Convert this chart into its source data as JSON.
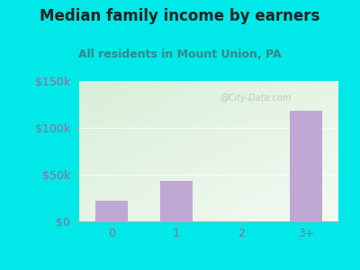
{
  "title": "Median family income by earners",
  "subtitle": "All residents in Mount Union, PA",
  "categories": [
    "0",
    "1",
    "2",
    "3+"
  ],
  "values": [
    22000,
    43000,
    0,
    118000
  ],
  "bar_color": "#c0a8d4",
  "ylim": [
    0,
    150000
  ],
  "yticks": [
    0,
    50000,
    100000,
    150000
  ],
  "ytick_labels": [
    "$0",
    "$50k",
    "$100k",
    "$150k"
  ],
  "outer_bg": "#00e8e8",
  "plot_bg_topleft": "#d8efd8",
  "plot_bg_bottomright": "#f4faf4",
  "title_color": "#222222",
  "subtitle_color": "#338888",
  "tick_color": "#996699",
  "axis_line_color": "#cccccc",
  "title_fontsize": 12,
  "subtitle_fontsize": 9,
  "tick_fontsize": 9,
  "watermark": "@City-Data.com"
}
